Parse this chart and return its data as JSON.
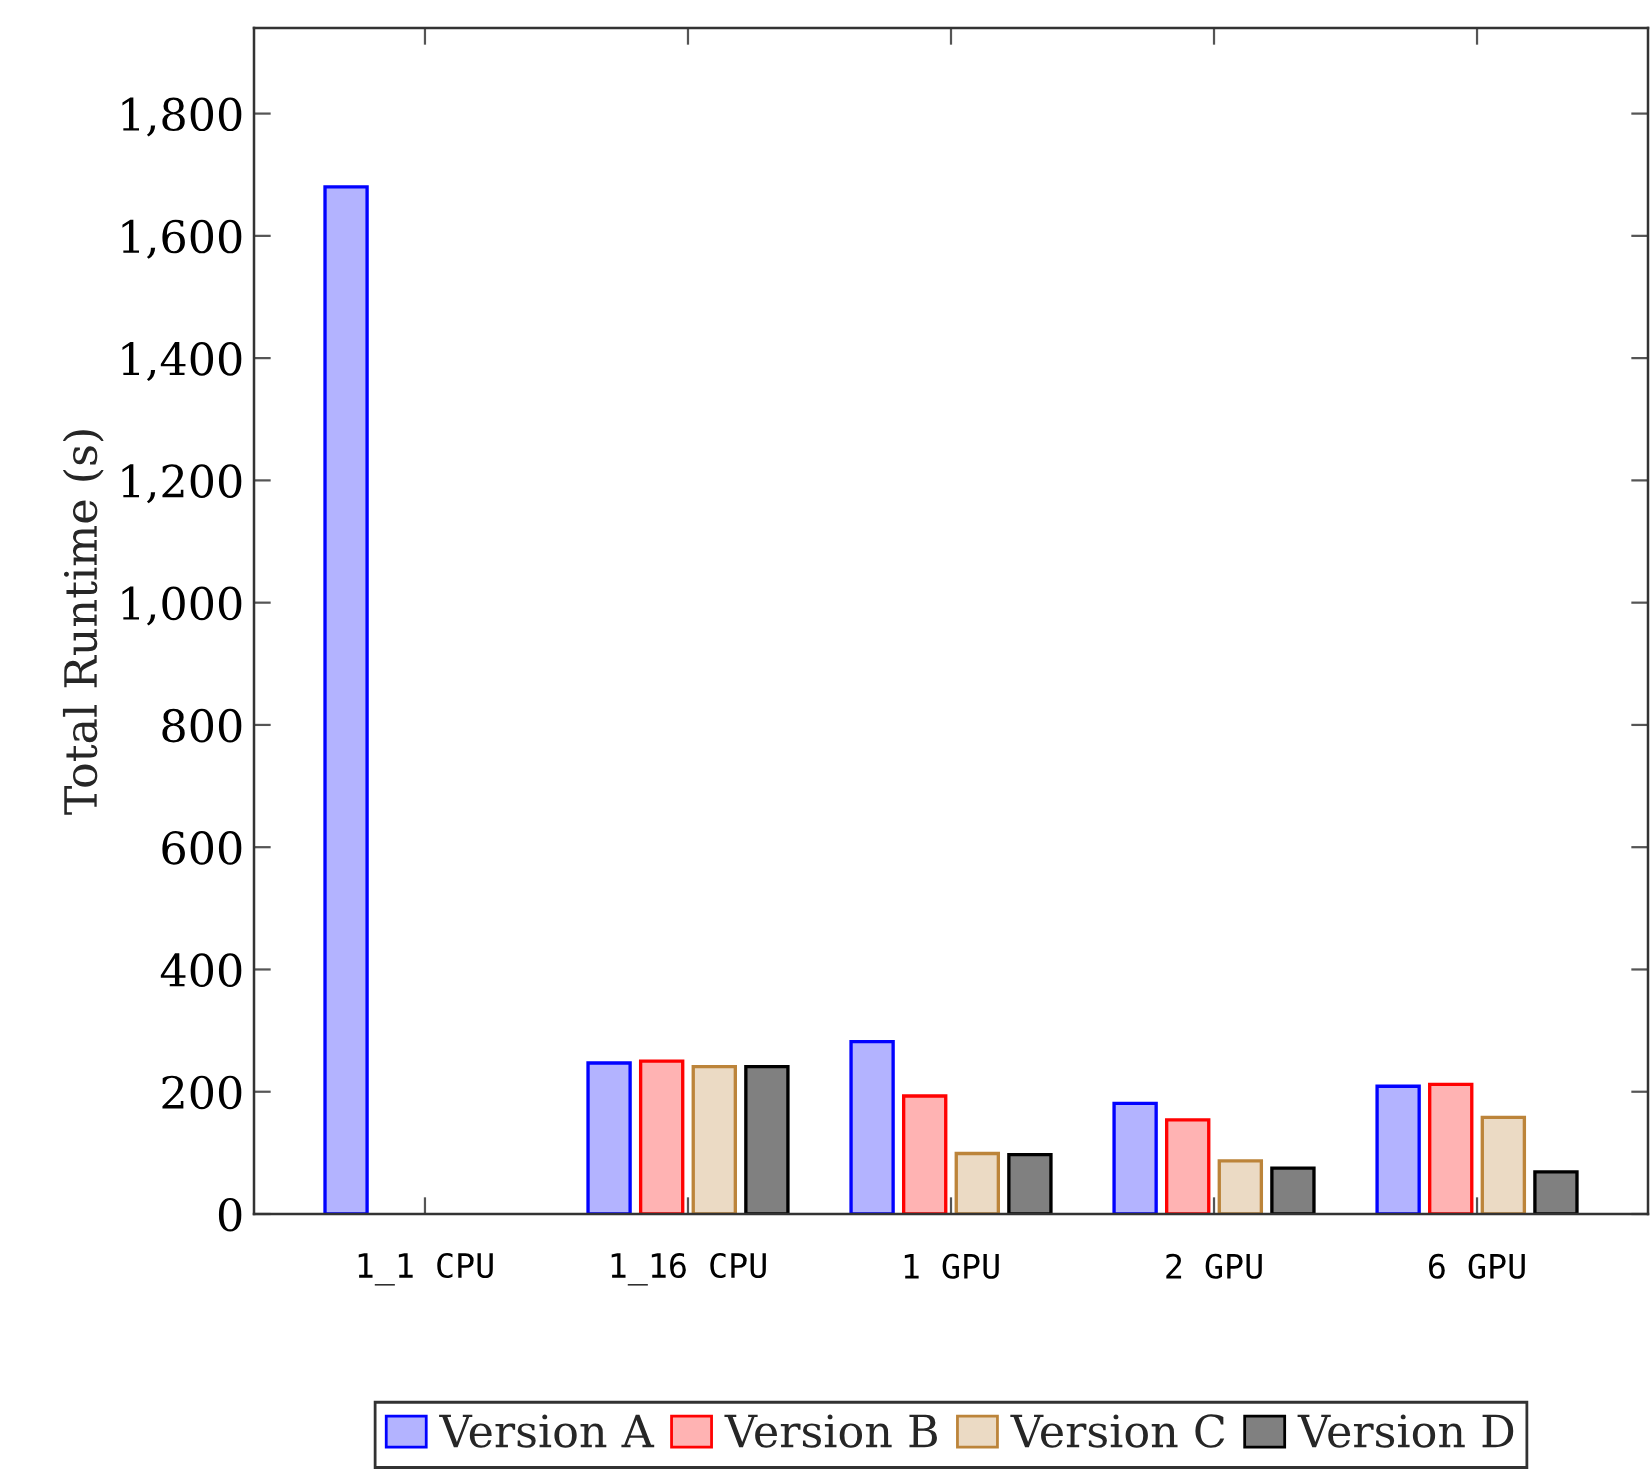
{
  "chart_data": {
    "type": "bar",
    "ylabel": "Total Runtime (s)",
    "categories": [
      "1_1 CPU",
      "1_16 CPU",
      "1 GPU",
      "2 GPU",
      "6 GPU"
    ],
    "series": [
      {
        "name": "Version A",
        "color": "#b3b3ff",
        "values": [
          1680,
          247,
          282,
          181,
          209
        ]
      },
      {
        "name": "Version B",
        "color": "#ffb3b3",
        "values": [
          null,
          250,
          193,
          154,
          212
        ]
      },
      {
        "name": "Version C",
        "color": "#ebdac4",
        "values": [
          null,
          241,
          99,
          87,
          158
        ]
      },
      {
        "name": "Version D",
        "color": "#808080",
        "values": [
          null,
          241,
          97,
          75,
          69
        ]
      }
    ],
    "ylim": [
      0,
      1940
    ],
    "yticks": [
      0,
      200,
      400,
      600,
      800,
      {
        "value": 1000,
        "label": "1,000"
      },
      {
        "value": 1200,
        "label": "1,200"
      },
      {
        "value": 1400,
        "label": "1,400"
      },
      {
        "value": 1600,
        "label": "1,600"
      },
      {
        "value": 1800,
        "label": "1,800"
      }
    ],
    "grid": false,
    "legend": "bottom"
  }
}
